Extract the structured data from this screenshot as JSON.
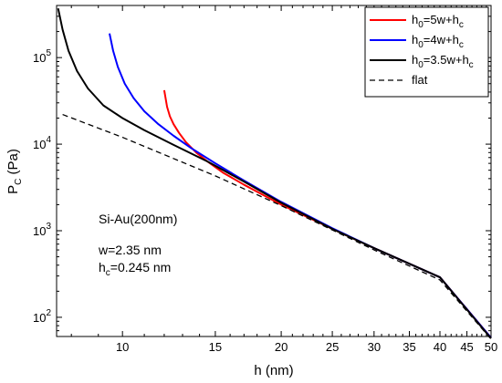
{
  "chart_data": {
    "type": "line",
    "xscale": "log",
    "yscale": "log",
    "xlim": [
      7.5,
      50
    ],
    "ylim": [
      60,
      400000
    ],
    "xlabel": {
      "main": "h (nm)"
    },
    "ylabel": {
      "main": "P",
      "sub": "C",
      "rest": " (Pa)"
    },
    "x_ticks": [
      {
        "value": 10,
        "label": "10"
      },
      {
        "value": 15,
        "label": "15"
      },
      {
        "value": 20,
        "label": "20"
      },
      {
        "value": 25,
        "label": "25"
      },
      {
        "value": 30,
        "label": "30"
      },
      {
        "value": 35,
        "label": "35"
      },
      {
        "value": 40,
        "label": "40"
      },
      {
        "value": 45,
        "label": "45"
      },
      {
        "value": 50,
        "label": "50"
      }
    ],
    "y_ticks": [
      {
        "value": 100,
        "base": "10",
        "exp": "2"
      },
      {
        "value": 1000,
        "base": "10",
        "exp": "3"
      },
      {
        "value": 10000,
        "base": "10",
        "exp": "4"
      },
      {
        "value": 100000,
        "base": "10",
        "exp": "5"
      }
    ],
    "legend": {
      "placement": "top-right",
      "entries": [
        {
          "pre": "h",
          "sub": "0",
          "mid": "=5w+h",
          "sub2": "c",
          "color": "#ff0000",
          "dash": false
        },
        {
          "pre": "h",
          "sub": "0",
          "mid": "=4w+h",
          "sub2": "c",
          "color": "#0000ff",
          "dash": false
        },
        {
          "pre": "h",
          "sub": "0",
          "mid": "=3.5w+h",
          "sub2": "c",
          "color": "#000000",
          "dash": false
        },
        {
          "pre": "flat",
          "sub": "",
          "mid": "",
          "sub2": "",
          "color": "#000000",
          "dash": true
        }
      ]
    },
    "annotations": {
      "material": "Si-Au(200nm)",
      "w": "w=2.35 nm",
      "hc_pre": "h",
      "hc_sub": "c",
      "hc_rest": "=0.245 nm"
    },
    "series": [
      {
        "color": "#ff0000",
        "dash": false,
        "x": [
          12.0,
          12.15,
          12.3,
          12.5,
          12.8,
          13.2,
          13.8,
          14.5,
          15.5,
          17,
          20,
          25,
          30,
          40,
          50
        ],
        "y": [
          42000,
          27000,
          21000,
          17000,
          13500,
          10500,
          8000,
          6300,
          4700,
          3400,
          2000,
          1050,
          630,
          290,
          58
        ]
      },
      {
        "color": "#0000ff",
        "dash": false,
        "x": [
          9.45,
          9.6,
          9.8,
          10.1,
          10.5,
          11.0,
          11.7,
          12.5,
          13.5,
          15,
          17,
          20,
          25,
          30,
          40,
          50
        ],
        "y": [
          190000,
          120000,
          78000,
          50000,
          34000,
          24000,
          17000,
          12500,
          9000,
          6000,
          3800,
          2150,
          1070,
          630,
          290,
          58
        ]
      },
      {
        "color": "#000000",
        "dash": false,
        "x": [
          7.55,
          7.7,
          7.9,
          8.2,
          8.6,
          9.2,
          10.0,
          11.0,
          12.5,
          14.5,
          17,
          20,
          25,
          30,
          40,
          50
        ],
        "y": [
          370000,
          210000,
          120000,
          70000,
          44000,
          28000,
          20000,
          14500,
          9800,
          6300,
          3700,
          2100,
          1050,
          630,
          290,
          57
        ]
      },
      {
        "color": "#000000",
        "dash": true,
        "x": [
          7.7,
          10,
          15,
          20,
          25,
          30,
          40,
          50
        ],
        "y": [
          22000,
          12000,
          4300,
          1950,
          1020,
          600,
          270,
          56
        ]
      }
    ]
  }
}
